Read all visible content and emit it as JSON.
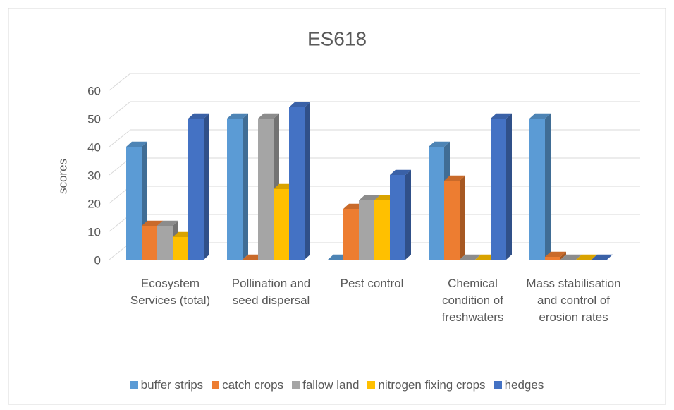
{
  "chart_data": {
    "type": "bar3d",
    "title": "ES618",
    "y_label": "scores",
    "categories": [
      "Ecosystem Services (total)",
      "Pollination and seed dispersal",
      "Pest control",
      "Chemical condition of freshwaters",
      "Mass stabilisation and control of erosion rates"
    ],
    "series": [
      {
        "name": "buffer strips",
        "color": "#5b9bd5",
        "values": [
          40,
          50,
          0,
          40,
          50
        ]
      },
      {
        "name": "catch crops",
        "color": "#ed7d31",
        "values": [
          12,
          0,
          18,
          28,
          1
        ]
      },
      {
        "name": "fallow land",
        "color": "#a5a5a5",
        "values": [
          12,
          50,
          21,
          0,
          0
        ]
      },
      {
        "name": "nitrogen fixing crops",
        "color": "#ffc000",
        "values": [
          8,
          25,
          21,
          0,
          0
        ]
      },
      {
        "name": "hedges",
        "color": "#4472c4",
        "values": [
          50,
          54,
          30,
          50,
          0
        ]
      }
    ],
    "ylim": [
      0,
      60
    ],
    "yticks": [
      0,
      10,
      20,
      30,
      40,
      50,
      60
    ],
    "grid": true,
    "legend": "bottom"
  }
}
